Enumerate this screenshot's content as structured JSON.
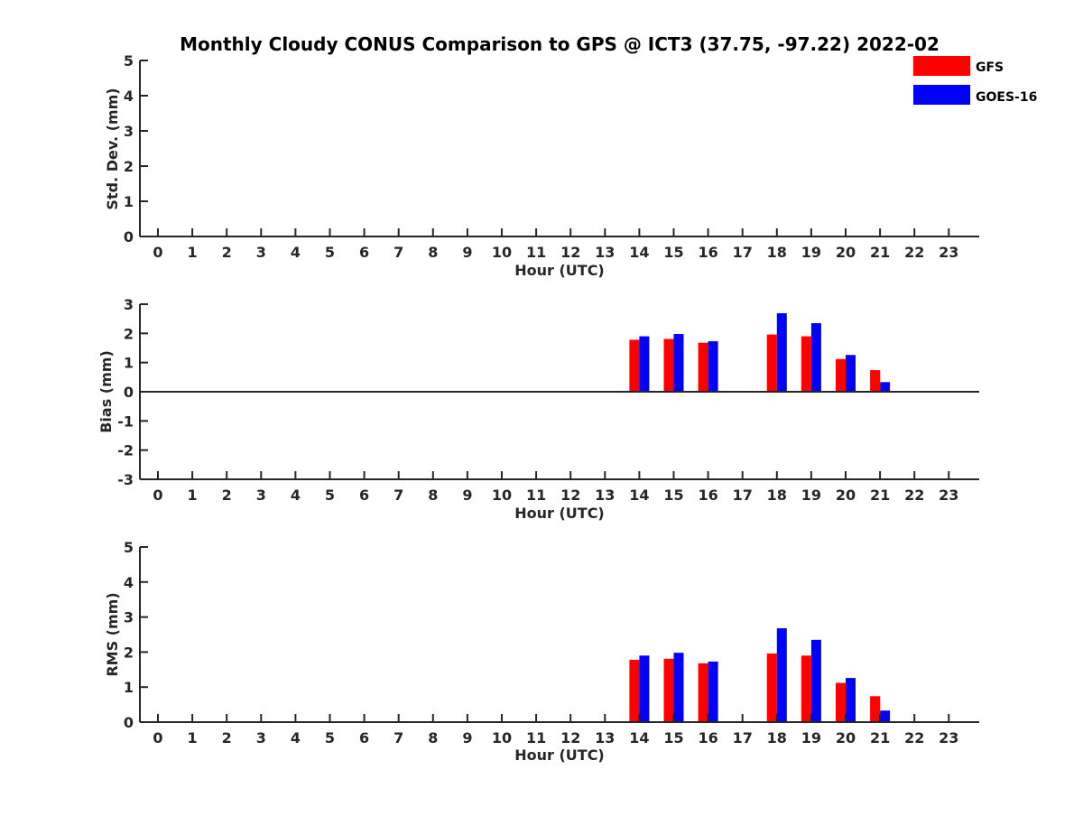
{
  "title": "Monthly Cloudy CONUS Comparison to GPS @ ICT3 (37.75, -97.22) 2022-02",
  "colors": {
    "axis": "#262626",
    "series": [
      "#ff0000",
      "#0000ff"
    ]
  },
  "chart_data": [
    {
      "type": "bar",
      "name": "std-dev",
      "ylabel": "Std. Dev. (mm)",
      "xlabel": "Hour (UTC)",
      "ylim": [
        0,
        5
      ],
      "yticks": [
        0,
        1,
        2,
        3,
        4,
        5
      ],
      "x": [
        0,
        1,
        2,
        3,
        4,
        5,
        6,
        7,
        8,
        9,
        10,
        11,
        12,
        13,
        14,
        15,
        16,
        17,
        18,
        19,
        20,
        21,
        22,
        23
      ],
      "series": [
        {
          "name": "GFS",
          "values": [
            null,
            null,
            null,
            null,
            null,
            null,
            null,
            null,
            null,
            null,
            null,
            null,
            null,
            null,
            null,
            null,
            null,
            null,
            null,
            null,
            null,
            null,
            null,
            null
          ]
        },
        {
          "name": "GOES-16",
          "values": [
            null,
            null,
            null,
            null,
            null,
            null,
            null,
            null,
            null,
            null,
            null,
            null,
            null,
            null,
            null,
            null,
            null,
            null,
            null,
            null,
            null,
            null,
            null,
            null
          ]
        }
      ],
      "legend": {
        "position": "top-right",
        "entries": [
          "GFS",
          "GOES-16"
        ]
      }
    },
    {
      "type": "bar",
      "name": "bias",
      "ylabel": "Bias (mm)",
      "xlabel": "Hour (UTC)",
      "ylim": [
        -3,
        3
      ],
      "yticks": [
        -3,
        -2,
        -1,
        0,
        1,
        2,
        3
      ],
      "zero_line": true,
      "x": [
        0,
        1,
        2,
        3,
        4,
        5,
        6,
        7,
        8,
        9,
        10,
        11,
        12,
        13,
        14,
        15,
        16,
        17,
        18,
        19,
        20,
        21,
        22,
        23
      ],
      "series": [
        {
          "name": "GFS",
          "values": [
            null,
            null,
            null,
            null,
            null,
            null,
            null,
            null,
            null,
            null,
            null,
            null,
            null,
            null,
            1.78,
            1.81,
            1.68,
            null,
            1.96,
            1.9,
            1.12,
            0.74,
            null,
            null
          ]
        },
        {
          "name": "GOES-16",
          "values": [
            null,
            null,
            null,
            null,
            null,
            null,
            null,
            null,
            null,
            null,
            null,
            null,
            null,
            null,
            1.9,
            1.98,
            1.73,
            null,
            2.69,
            2.35,
            1.26,
            0.33,
            null,
            null
          ]
        }
      ]
    },
    {
      "type": "bar",
      "name": "rms",
      "ylabel": "RMS (mm)",
      "xlabel": "Hour (UTC)",
      "ylim": [
        0,
        5
      ],
      "yticks": [
        0,
        1,
        2,
        3,
        4,
        5
      ],
      "x": [
        0,
        1,
        2,
        3,
        4,
        5,
        6,
        7,
        8,
        9,
        10,
        11,
        12,
        13,
        14,
        15,
        16,
        17,
        18,
        19,
        20,
        21,
        22,
        23
      ],
      "series": [
        {
          "name": "GFS",
          "values": [
            null,
            null,
            null,
            null,
            null,
            null,
            null,
            null,
            null,
            null,
            null,
            null,
            null,
            null,
            1.78,
            1.81,
            1.68,
            null,
            1.96,
            1.9,
            1.12,
            0.74,
            null,
            null
          ]
        },
        {
          "name": "GOES-16",
          "values": [
            null,
            null,
            null,
            null,
            null,
            null,
            null,
            null,
            null,
            null,
            null,
            null,
            null,
            null,
            1.9,
            1.98,
            1.73,
            null,
            2.68,
            2.35,
            1.26,
            0.33,
            null,
            null
          ]
        }
      ]
    }
  ]
}
